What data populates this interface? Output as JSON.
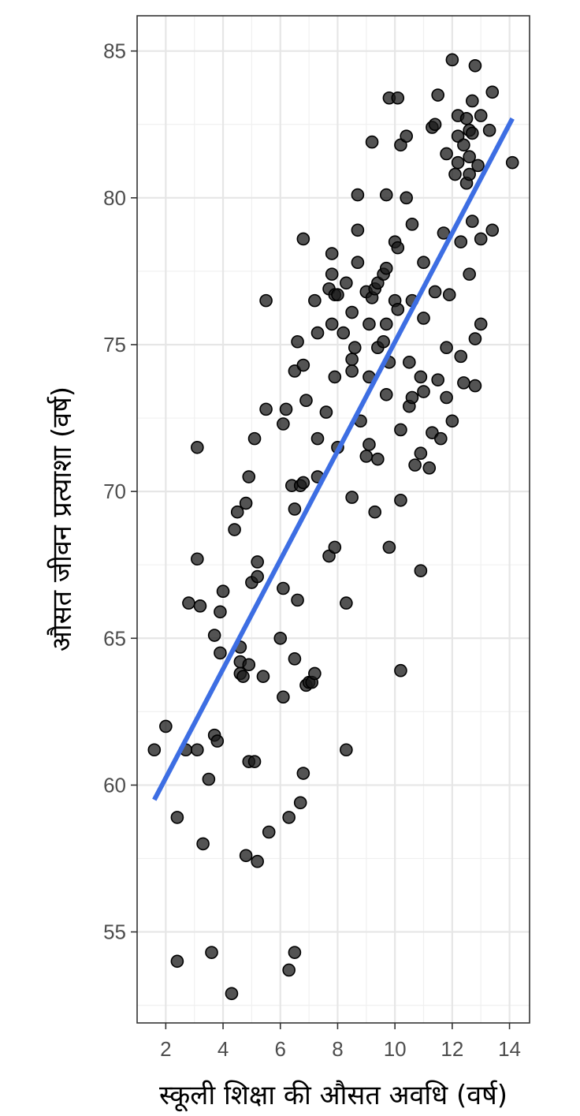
{
  "chart_data": {
    "type": "scatter",
    "title": "",
    "xlabel": "स्कूली शिक्षा की औसत अवधि (वर्ष)",
    "ylabel": "औसत जीवन प्रत्याशा (वर्ष)",
    "xlim": [
      1.0,
      14.7
    ],
    "ylim": [
      51.9,
      86.2
    ],
    "x_ticks": [
      2,
      4,
      6,
      8,
      10,
      12,
      14
    ],
    "y_ticks": [
      55,
      60,
      65,
      70,
      75,
      80,
      85
    ],
    "x_tick_labels": [
      "2",
      "4",
      "6",
      "8",
      "10",
      "12",
      "14"
    ],
    "y_tick_labels": [
      "55",
      "60",
      "65",
      "70",
      "75",
      "80",
      "85"
    ],
    "grid": true,
    "point_color": "#1a1a1a",
    "line_color": "#3d6ee3",
    "trend_line": {
      "x": [
        1.6,
        14.1
      ],
      "y": [
        59.5,
        82.7
      ]
    },
    "points": [
      [
        1.6,
        61.2
      ],
      [
        2.0,
        62.0
      ],
      [
        2.4,
        58.9
      ],
      [
        2.4,
        54.0
      ],
      [
        2.7,
        61.2
      ],
      [
        2.8,
        66.2
      ],
      [
        3.1,
        61.2
      ],
      [
        3.1,
        71.5
      ],
      [
        3.1,
        67.7
      ],
      [
        3.2,
        66.1
      ],
      [
        3.3,
        58.0
      ],
      [
        3.5,
        60.2
      ],
      [
        3.6,
        54.3
      ],
      [
        3.7,
        65.1
      ],
      [
        3.7,
        61.7
      ],
      [
        3.8,
        61.5
      ],
      [
        3.9,
        64.5
      ],
      [
        3.9,
        65.9
      ],
      [
        4.0,
        66.6
      ],
      [
        4.3,
        52.9
      ],
      [
        4.4,
        68.7
      ],
      [
        4.5,
        69.3
      ],
      [
        4.6,
        64.7
      ],
      [
        4.6,
        64.2
      ],
      [
        4.6,
        63.8
      ],
      [
        4.7,
        63.7
      ],
      [
        4.8,
        69.6
      ],
      [
        4.8,
        57.6
      ],
      [
        4.9,
        70.5
      ],
      [
        4.9,
        64.1
      ],
      [
        4.9,
        60.8
      ],
      [
        5.0,
        66.9
      ],
      [
        5.1,
        71.8
      ],
      [
        5.1,
        60.8
      ],
      [
        5.2,
        67.6
      ],
      [
        5.2,
        67.1
      ],
      [
        5.2,
        57.4
      ],
      [
        5.4,
        63.7
      ],
      [
        5.5,
        76.5
      ],
      [
        5.5,
        72.8
      ],
      [
        5.6,
        58.4
      ],
      [
        6.0,
        65.0
      ],
      [
        6.1,
        72.3
      ],
      [
        6.1,
        66.7
      ],
      [
        6.1,
        63.0
      ],
      [
        6.2,
        72.8
      ],
      [
        6.3,
        58.9
      ],
      [
        6.3,
        53.7
      ],
      [
        6.4,
        70.2
      ],
      [
        6.5,
        74.1
      ],
      [
        6.5,
        69.4
      ],
      [
        6.5,
        64.3
      ],
      [
        6.5,
        54.3
      ],
      [
        6.6,
        75.1
      ],
      [
        6.6,
        66.3
      ],
      [
        6.7,
        70.2
      ],
      [
        6.7,
        59.4
      ],
      [
        6.8,
        74.3
      ],
      [
        6.8,
        78.6
      ],
      [
        6.8,
        70.3
      ],
      [
        6.8,
        60.4
      ],
      [
        6.9,
        73.1
      ],
      [
        6.9,
        63.4
      ],
      [
        7.0,
        63.5
      ],
      [
        7.1,
        63.5
      ],
      [
        7.2,
        76.5
      ],
      [
        7.2,
        63.8
      ],
      [
        7.3,
        75.4
      ],
      [
        7.3,
        71.8
      ],
      [
        7.3,
        70.5
      ],
      [
        7.6,
        72.7
      ],
      [
        7.7,
        76.9
      ],
      [
        7.7,
        67.8
      ],
      [
        7.8,
        77.4
      ],
      [
        7.8,
        78.1
      ],
      [
        7.8,
        75.7
      ],
      [
        7.9,
        76.7
      ],
      [
        7.9,
        73.9
      ],
      [
        7.9,
        68.1
      ],
      [
        8.0,
        76.7
      ],
      [
        8.0,
        71.5
      ],
      [
        8.2,
        75.4
      ],
      [
        8.3,
        77.1
      ],
      [
        8.3,
        66.2
      ],
      [
        8.3,
        61.2
      ],
      [
        8.5,
        74.5
      ],
      [
        8.5,
        74.1
      ],
      [
        8.5,
        76.1
      ],
      [
        8.5,
        69.8
      ],
      [
        8.6,
        74.9
      ],
      [
        8.7,
        80.1
      ],
      [
        8.7,
        78.9
      ],
      [
        8.7,
        77.8
      ],
      [
        8.8,
        72.4
      ],
      [
        9.0,
        76.8
      ],
      [
        9.0,
        71.2
      ],
      [
        9.1,
        75.7
      ],
      [
        9.1,
        73.9
      ],
      [
        9.1,
        71.6
      ],
      [
        9.2,
        76.6
      ],
      [
        9.2,
        81.9
      ],
      [
        9.3,
        76.9
      ],
      [
        9.3,
        69.3
      ],
      [
        9.4,
        77.1
      ],
      [
        9.4,
        74.9
      ],
      [
        9.4,
        71.1
      ],
      [
        9.6,
        77.4
      ],
      [
        9.6,
        75.1
      ],
      [
        9.7,
        77.6
      ],
      [
        9.7,
        80.1
      ],
      [
        9.7,
        75.7
      ],
      [
        9.7,
        73.3
      ],
      [
        9.8,
        83.4
      ],
      [
        9.8,
        74.4
      ],
      [
        9.8,
        68.1
      ],
      [
        10.0,
        76.5
      ],
      [
        10.0,
        78.5
      ],
      [
        10.1,
        78.3
      ],
      [
        10.1,
        76.2
      ],
      [
        10.1,
        83.4
      ],
      [
        10.2,
        81.8
      ],
      [
        10.2,
        72.1
      ],
      [
        10.2,
        69.7
      ],
      [
        10.2,
        63.9
      ],
      [
        10.4,
        80.0
      ],
      [
        10.4,
        82.1
      ],
      [
        10.5,
        74.4
      ],
      [
        10.5,
        72.9
      ],
      [
        10.6,
        76.5
      ],
      [
        10.6,
        73.2
      ],
      [
        10.6,
        79.1
      ],
      [
        10.7,
        70.9
      ],
      [
        10.9,
        73.9
      ],
      [
        10.9,
        71.3
      ],
      [
        10.9,
        67.3
      ],
      [
        11.0,
        77.8
      ],
      [
        11.0,
        75.9
      ],
      [
        11.0,
        73.4
      ],
      [
        11.2,
        70.8
      ],
      [
        11.3,
        72.0
      ],
      [
        11.3,
        82.4
      ],
      [
        11.4,
        82.5
      ],
      [
        11.4,
        76.8
      ],
      [
        11.5,
        83.5
      ],
      [
        11.5,
        73.8
      ],
      [
        11.6,
        71.8
      ],
      [
        11.7,
        78.8
      ],
      [
        11.8,
        81.5
      ],
      [
        11.8,
        74.9
      ],
      [
        11.8,
        73.2
      ],
      [
        11.9,
        76.7
      ],
      [
        12.0,
        84.7
      ],
      [
        12.0,
        72.4
      ],
      [
        12.1,
        80.8
      ],
      [
        12.2,
        82.8
      ],
      [
        12.2,
        82.1
      ],
      [
        12.2,
        81.2
      ],
      [
        12.3,
        78.5
      ],
      [
        12.3,
        74.6
      ],
      [
        12.4,
        73.7
      ],
      [
        12.4,
        81.8
      ],
      [
        12.5,
        82.7
      ],
      [
        12.5,
        80.5
      ],
      [
        12.6,
        82.3
      ],
      [
        12.6,
        81.4
      ],
      [
        12.6,
        80.8
      ],
      [
        12.6,
        77.4
      ],
      [
        12.7,
        83.3
      ],
      [
        12.7,
        82.2
      ],
      [
        12.7,
        79.2
      ],
      [
        12.8,
        84.5
      ],
      [
        12.8,
        75.2
      ],
      [
        12.8,
        73.6
      ],
      [
        12.9,
        81.1
      ],
      [
        13.0,
        82.8
      ],
      [
        13.0,
        78.6
      ],
      [
        13.0,
        75.7
      ],
      [
        13.3,
        82.3
      ],
      [
        13.4,
        83.6
      ],
      [
        13.4,
        78.9
      ],
      [
        14.1,
        81.2
      ]
    ]
  }
}
